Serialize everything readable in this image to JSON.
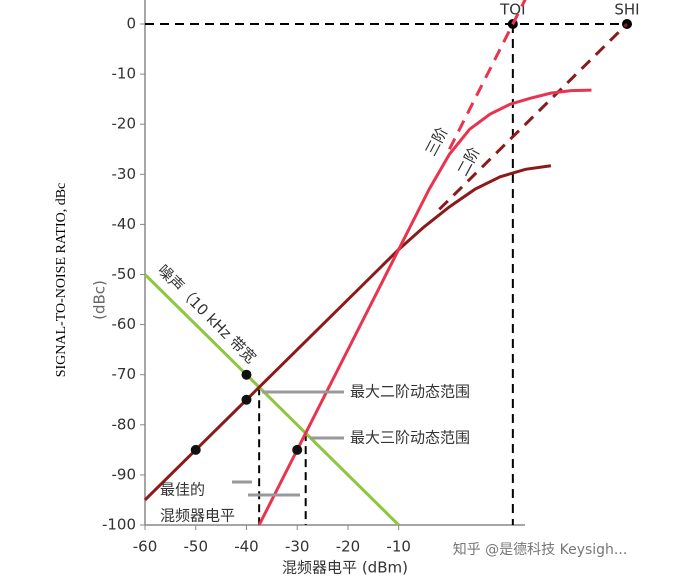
{
  "chart_data": {
    "type": "line",
    "ylabel": "SIGNAL-TO-NOISE RATIO, dBc",
    "yunit": "(dBc)",
    "xlabel": "混频器电平 (dBm)",
    "xlim": [
      -60,
      35
    ],
    "ylim": [
      -100,
      0
    ],
    "xticks": [
      -60,
      -50,
      -40,
      -30,
      -20,
      -10
    ],
    "yticks": [
      0,
      -10,
      -20,
      -30,
      -40,
      -50,
      -60,
      -70,
      -80,
      -90,
      -100
    ],
    "series": [
      {
        "name": "噪声（10 kHz 带宽",
        "color": "#8dc63f",
        "x": [
          -60,
          -10
        ],
        "values": [
          -50,
          -100
        ]
      },
      {
        "name": "二阶",
        "color": "#8b1a1a",
        "x": [
          -60,
          -10,
          -5,
          0,
          5,
          10,
          15,
          20
        ],
        "values": [
          -95,
          -45,
          -40.5,
          -36.5,
          -33,
          -30.5,
          -29,
          -28.3
        ]
      },
      {
        "color": "#8b1a1a",
        "dashed": true,
        "x": [
          -2,
          35
        ],
        "values": [
          -37,
          0
        ]
      },
      {
        "name": "三阶",
        "color": "#e8344e",
        "x": [
          -37.5,
          -10,
          -4,
          0,
          4,
          8,
          12,
          16,
          20,
          24,
          28
        ],
        "values": [
          -100,
          -45,
          -33,
          -26,
          -21,
          -18,
          -16,
          -14.8,
          -13.8,
          -13.3,
          -13.2
        ]
      },
      {
        "color": "#e8344e",
        "dashed": true,
        "x": [
          0,
          15
        ],
        "values": [
          -25,
          5
        ]
      }
    ],
    "points": {
      "x": [
        -40,
        -40,
        -50,
        -30
      ],
      "values": [
        -70,
        -75,
        -85,
        -85
      ]
    },
    "intercepts": [
      {
        "label": "TOI",
        "x": 12.5,
        "value": 0
      },
      {
        "label": "SHI",
        "x": 35,
        "value": 0
      }
    ],
    "optimum": {
      "x": [
        -37.5,
        -28.33
      ],
      "values": [
        -72.5,
        -81.67
      ]
    },
    "annotations": [
      "最大二阶动态范围",
      "最大三阶动态范围",
      "最佳的",
      "混频器电平"
    ],
    "watermark": "知乎 @是德科技 Keysigh..."
  }
}
